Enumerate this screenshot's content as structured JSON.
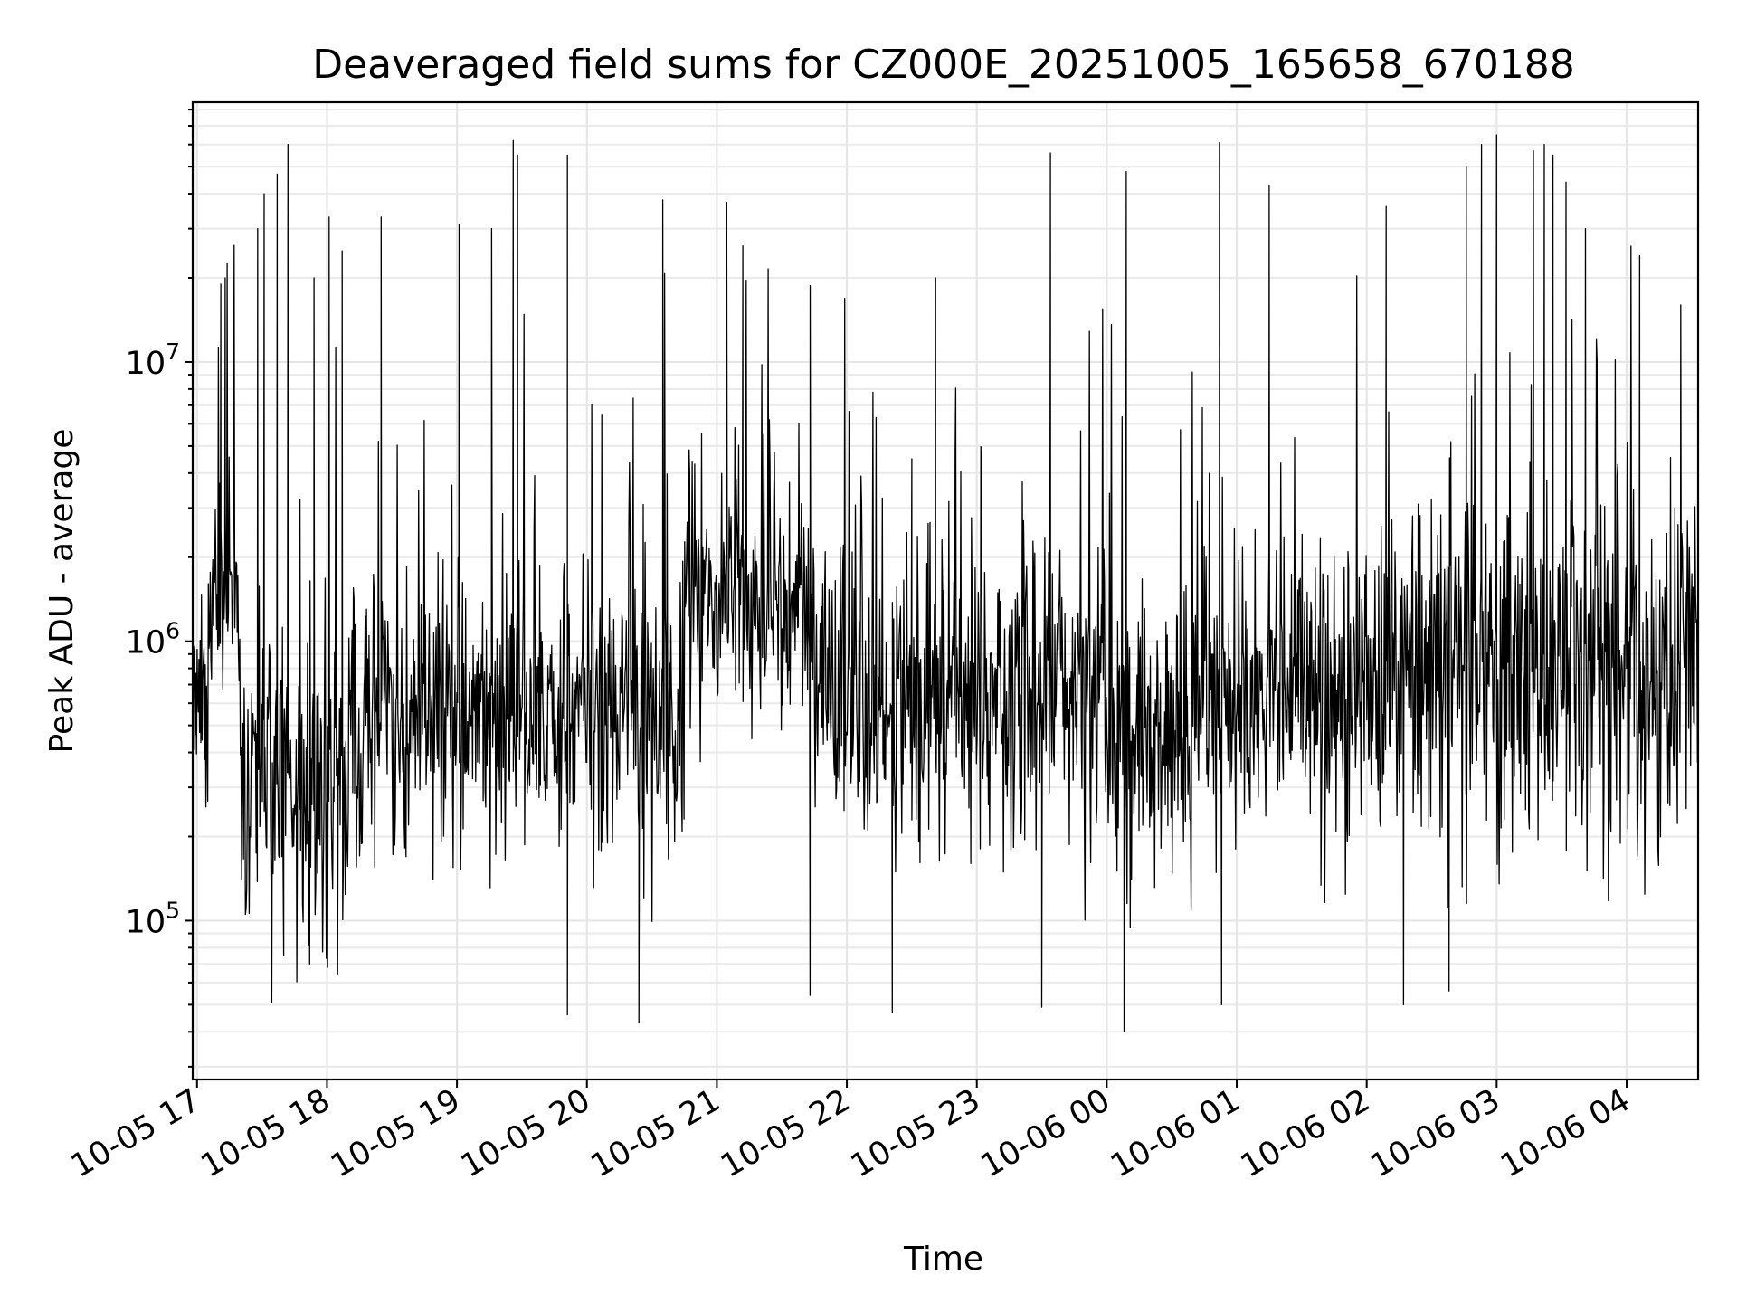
{
  "chart_data": {
    "type": "line",
    "title": "Deaveraged field sums for CZ000E_20251005_165658_670188",
    "xlabel": "Time",
    "ylabel": "Peak ADU - average",
    "yscale": "log",
    "xlim": [
      "2025-10-05 16:58",
      "2025-10-06 04:33"
    ],
    "ylim": [
      27000,
      85000000
    ],
    "grid": true,
    "legend": "none",
    "line_color": "#000000",
    "x_tick_labels": [
      "10-05 17",
      "10-05 18",
      "10-05 19",
      "10-05 20",
      "10-05 21",
      "10-05 22",
      "10-05 23",
      "10-06 00",
      "10-06 01",
      "10-06 02",
      "10-06 03",
      "10-06 04"
    ],
    "y_tick_labels": [
      {
        "base": "10",
        "exp": "5",
        "value": 100000
      },
      {
        "base": "10",
        "exp": "6",
        "value": 1000000
      },
      {
        "base": "10",
        "exp": "7",
        "value": 10000000
      }
    ],
    "series_summary": {
      "typical_level": 700000,
      "typical_low": 150000,
      "typical_high": 2500000,
      "segments": [
        {
          "from": "2025-10-05 16:58",
          "to": "2025-10-05 17:05",
          "level": 600000,
          "noise": 0.8
        },
        {
          "from": "2025-10-05 17:05",
          "to": "2025-10-05 17:20",
          "level": 1300000,
          "noise": 0.9
        },
        {
          "from": "2025-10-05 17:20",
          "to": "2025-10-05 18:10",
          "level": 330000,
          "noise": 1.4
        },
        {
          "from": "2025-10-05 18:10",
          "to": "2025-10-05 20:45",
          "level": 550000,
          "noise": 1.1
        },
        {
          "from": "2025-10-05 20:45",
          "to": "2025-10-05 21:45",
          "level": 1400000,
          "noise": 0.9
        },
        {
          "from": "2025-10-05 21:45",
          "to": "2025-10-06 00:00",
          "level": 650000,
          "noise": 1.1
        },
        {
          "from": "2025-10-06 00:00",
          "to": "2025-10-06 00:40",
          "level": 450000,
          "noise": 1.1
        },
        {
          "from": "2025-10-06 00:40",
          "to": "2025-10-06 02:20",
          "level": 650000,
          "noise": 1.1
        },
        {
          "from": "2025-10-06 02:20",
          "to": "2025-10-06 04:33",
          "level": 800000,
          "noise": 1.4
        }
      ],
      "spikes": [
        {
          "t": "2025-10-05 17:11",
          "y": 19000000
        },
        {
          "t": "2025-10-05 17:13",
          "y": 20000000
        },
        {
          "t": "2025-10-05 17:28",
          "y": 30000000
        },
        {
          "t": "2025-10-05 17:31",
          "y": 40000000
        },
        {
          "t": "2025-10-05 17:37",
          "y": 47000000
        },
        {
          "t": "2025-10-05 17:42",
          "y": 60000000
        },
        {
          "t": "2025-10-05 17:54",
          "y": 20000000
        },
        {
          "t": "2025-10-05 18:01",
          "y": 33000000
        },
        {
          "t": "2025-10-05 18:07",
          "y": 25000000
        },
        {
          "t": "2025-10-05 18:25",
          "y": 33000000
        },
        {
          "t": "2025-10-05 19:01",
          "y": 31000000
        },
        {
          "t": "2025-10-05 19:16",
          "y": 30000000
        },
        {
          "t": "2025-10-05 19:26",
          "y": 62000000
        },
        {
          "t": "2025-10-05 19:28",
          "y": 55000000
        },
        {
          "t": "2025-10-05 19:51",
          "y": 55000000
        },
        {
          "t": "2025-10-05 20:35",
          "y": 38000000
        },
        {
          "t": "2025-10-05 21:12",
          "y": 26000000
        },
        {
          "t": "2025-10-05 22:30",
          "y": 4500000
        },
        {
          "t": "2025-10-05 22:41",
          "y": 20000000
        },
        {
          "t": "2025-10-05 23:34",
          "y": 56000000
        },
        {
          "t": "2025-10-06 00:09",
          "y": 48000000
        },
        {
          "t": "2025-10-06 00:52",
          "y": 61000000
        },
        {
          "t": "2025-10-06 01:15",
          "y": 43000000
        },
        {
          "t": "2025-10-06 02:09",
          "y": 36000000
        },
        {
          "t": "2025-10-06 02:46",
          "y": 50000000
        },
        {
          "t": "2025-10-06 02:53",
          "y": 60000000
        },
        {
          "t": "2025-10-06 03:00",
          "y": 65000000
        },
        {
          "t": "2025-10-06 03:17",
          "y": 57000000
        },
        {
          "t": "2025-10-06 03:22",
          "y": 60000000
        },
        {
          "t": "2025-10-06 03:26",
          "y": 55000000
        },
        {
          "t": "2025-10-06 03:32",
          "y": 44000000
        },
        {
          "t": "2025-10-06 03:41",
          "y": 30000000
        },
        {
          "t": "2025-10-06 04:06",
          "y": 24000000
        },
        {
          "t": "2025-10-06 04:25",
          "y": 16000000
        }
      ],
      "dips": [
        {
          "t": "2025-10-05 17:40",
          "y": 75000
        },
        {
          "t": "2025-10-05 17:52",
          "y": 70000
        },
        {
          "t": "2025-10-05 19:51",
          "y": 46000
        },
        {
          "t": "2025-10-05 20:24",
          "y": 43000
        },
        {
          "t": "2025-10-05 21:43",
          "y": 54000
        },
        {
          "t": "2025-10-05 22:21",
          "y": 47000
        },
        {
          "t": "2025-10-05 23:30",
          "y": 49000
        },
        {
          "t": "2025-10-06 00:08",
          "y": 40000
        },
        {
          "t": "2025-10-06 00:53",
          "y": 50000
        },
        {
          "t": "2025-10-06 02:17",
          "y": 50000
        },
        {
          "t": "2025-10-06 02:38",
          "y": 56000
        }
      ]
    }
  }
}
